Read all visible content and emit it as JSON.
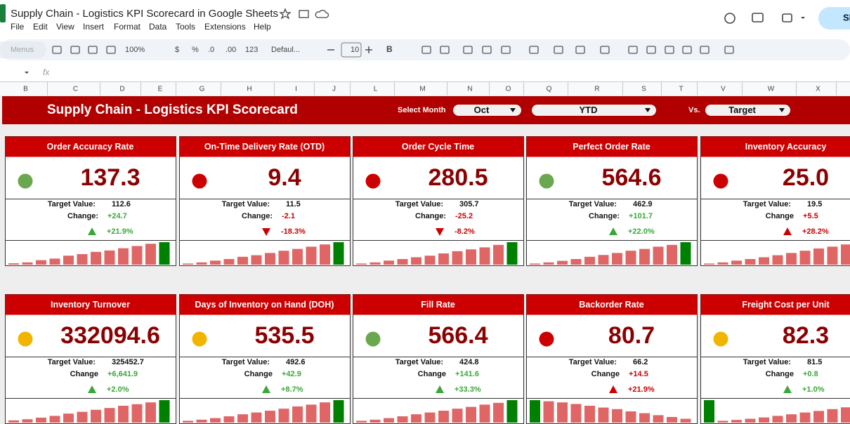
{
  "app": {
    "title": "Supply Chain - Logistics KPI Scorecard in Google Sheets",
    "menus": [
      "File",
      "Edit",
      "View",
      "Insert",
      "Format",
      "Data",
      "Tools",
      "Extensions",
      "Help"
    ],
    "toolbar": [
      "Menus",
      "100%",
      "$",
      "%",
      ".0",
      ".00",
      "123",
      "Defaul...",
      "10",
      "B"
    ],
    "formula_label": "fx",
    "share": "Share",
    "columns": [
      "B",
      "C",
      "D",
      "E",
      "G",
      "H",
      "I",
      "J",
      "L",
      "M",
      "N",
      "O",
      "Q",
      "R",
      "S",
      "T",
      "V",
      "W",
      "X"
    ]
  },
  "dashboard": {
    "title": "Supply Chain - Logistics KPI Scorecard",
    "month_label": "Select Month",
    "month": "Oct",
    "period": "YTD",
    "vs_label": "Vs.",
    "comparison": "Target"
  },
  "cards": [
    {
      "title": "Order Accuracy Rate",
      "value": "137.3",
      "status_color": "#6aa84f",
      "target_label": "Target Value:",
      "target": "112.6",
      "change_label": "Change:",
      "change": "+24.7",
      "change_pct": "+21.9%",
      "change_color": "#38a838",
      "trend": "up",
      "bars": [
        6,
        10,
        20,
        27,
        40,
        47,
        57,
        63,
        73,
        83,
        93,
        100
      ],
      "highlight": 11
    },
    {
      "title": "On-Time Delivery Rate (OTD)",
      "value": "9.4",
      "status_color": "#cc0000",
      "target_label": "Target Value:",
      "target": "11.5",
      "change_label": "Change:",
      "change": "-2.1",
      "change_pct": "-18.3%",
      "change_color": "#cc0000",
      "trend": "down",
      "bars": [
        5,
        10,
        18,
        25,
        35,
        42,
        52,
        62,
        70,
        80,
        90,
        100
      ],
      "highlight": 11
    },
    {
      "title": "Order Cycle Time",
      "value": "280.5",
      "status_color": "#cc0000",
      "target_label": "Target Value:",
      "target": "305.7",
      "change_label": "Change:",
      "change": "-25.2",
      "change_pct": "-8.2%",
      "change_color": "#cc0000",
      "trend": "down",
      "bars": [
        5,
        10,
        18,
        25,
        33,
        40,
        50,
        60,
        68,
        77,
        88,
        100
      ],
      "highlight": 11
    },
    {
      "title": "Perfect Order Rate",
      "value": "564.6",
      "status_color": "#6aa84f",
      "target_label": "Target Value:",
      "target": "462.9",
      "change_label": "Change:",
      "change": "+101.7",
      "change_pct": "+22.0%",
      "change_color": "#38a838",
      "trend": "up",
      "bars": [
        5,
        10,
        17,
        25,
        35,
        43,
        52,
        62,
        70,
        80,
        88,
        100
      ],
      "highlight": 11
    },
    {
      "title": "Inventory Accuracy",
      "value": "25.0",
      "status_color": "#cc0000",
      "target_label": "Target Value:",
      "target": "19.5",
      "change_label": "Change",
      "change": "+5.5",
      "change_pct": "+28.2%",
      "change_color": "#cc0000",
      "trend": "up",
      "bars": [
        5,
        10,
        18,
        25,
        33,
        42,
        52,
        62,
        72,
        80,
        90,
        100
      ],
      "highlight": 11
    },
    {
      "title": "Inventory Turnover",
      "value": "332094.6",
      "status_color": "#f1b500",
      "target_label": "Target Value:",
      "target": "325452.7",
      "change_label": "Change",
      "change": "+6,641.9",
      "change_pct": "+2.0%",
      "change_color": "#38a838",
      "trend": "up",
      "bars": [
        10,
        15,
        22,
        30,
        40,
        48,
        57,
        65,
        75,
        82,
        90,
        100
      ],
      "highlight": 11
    },
    {
      "title": "Days of Inventory on Hand (DOH)",
      "value": "535.5",
      "status_color": "#f1b500",
      "target_label": "Target Value:",
      "target": "492.6",
      "change_label": "Change",
      "change": "+42.9",
      "change_pct": "+8.7%",
      "change_color": "#38a838",
      "trend": "up",
      "bars": [
        8,
        13,
        20,
        28,
        37,
        45,
        53,
        62,
        72,
        80,
        90,
        100
      ],
      "highlight": 11
    },
    {
      "title": "Fill Rate",
      "value": "566.4",
      "status_color": "#6aa84f",
      "target_label": "Target Value:",
      "target": "424.8",
      "change_label": "Change",
      "change": "+141.6",
      "change_pct": "+33.3%",
      "change_color": "#38a838",
      "trend": "up",
      "bars": [
        8,
        13,
        20,
        28,
        37,
        45,
        53,
        62,
        70,
        80,
        88,
        100
      ],
      "highlight": 11
    },
    {
      "title": "Backorder Rate",
      "value": "80.7",
      "status_color": "#cc0000",
      "target_label": "Target Value:",
      "target": "66.2",
      "change_label": "Change",
      "change": "+14.5",
      "change_pct": "+21.9%",
      "change_color": "#cc0000",
      "trend": "up",
      "bars": [
        100,
        95,
        90,
        83,
        75,
        67,
        60,
        50,
        42,
        33,
        25,
        17
      ],
      "highlight": 0
    },
    {
      "title": "Freight Cost per Unit",
      "value": "82.3",
      "status_color": "#f1b500",
      "target_label": "Target Value:",
      "target": "81.5",
      "change_label": "Change",
      "change": "+0.8",
      "change_pct": "+1.0%",
      "change_color": "#38a838",
      "trend": "up",
      "bars": [
        100,
        8,
        12,
        17,
        23,
        30,
        37,
        45,
        52,
        60,
        68,
        75
      ],
      "highlight": 0
    }
  ]
}
